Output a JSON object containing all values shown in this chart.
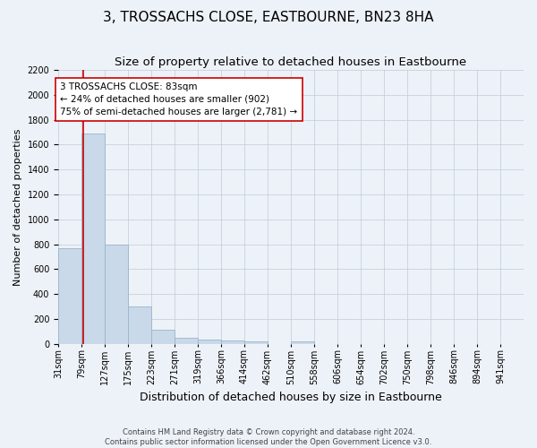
{
  "title": "3, TROSSACHS CLOSE, EASTBOURNE, BN23 8HA",
  "subtitle": "Size of property relative to detached houses in Eastbourne",
  "xlabel": "Distribution of detached houses by size in Eastbourne",
  "ylabel": "Number of detached properties",
  "footer_line1": "Contains HM Land Registry data © Crown copyright and database right 2024.",
  "footer_line2": "Contains public sector information licensed under the Open Government Licence v3.0.",
  "bar_edges": [
    31,
    79,
    127,
    175,
    223,
    271,
    319,
    366,
    414,
    462,
    510,
    558,
    606,
    654,
    702,
    750,
    798,
    846,
    894,
    941,
    989
  ],
  "bar_heights": [
    770,
    1690,
    800,
    300,
    110,
    45,
    32,
    25,
    22,
    0,
    22,
    0,
    0,
    0,
    0,
    0,
    0,
    0,
    0,
    0
  ],
  "bar_color": "#c9d9ea",
  "bar_edgecolor": "#9ab4cc",
  "property_size": 83,
  "red_line_color": "#cc0000",
  "annotation_text": "3 TROSSACHS CLOSE: 83sqm\n← 24% of detached houses are smaller (902)\n75% of semi-detached houses are larger (2,781) →",
  "annotation_box_color": "#ffffff",
  "annotation_box_edgecolor": "#cc0000",
  "ylim": [
    0,
    2200
  ],
  "yticks": [
    0,
    200,
    400,
    600,
    800,
    1000,
    1200,
    1400,
    1600,
    1800,
    2000,
    2200
  ],
  "bg_color": "#edf2f8",
  "plot_bg_color": "#edf2f8",
  "title_fontsize": 11,
  "subtitle_fontsize": 9.5,
  "xlabel_fontsize": 9,
  "ylabel_fontsize": 8,
  "tick_fontsize": 7,
  "annotation_fontsize": 7.5,
  "footer_fontsize": 6
}
